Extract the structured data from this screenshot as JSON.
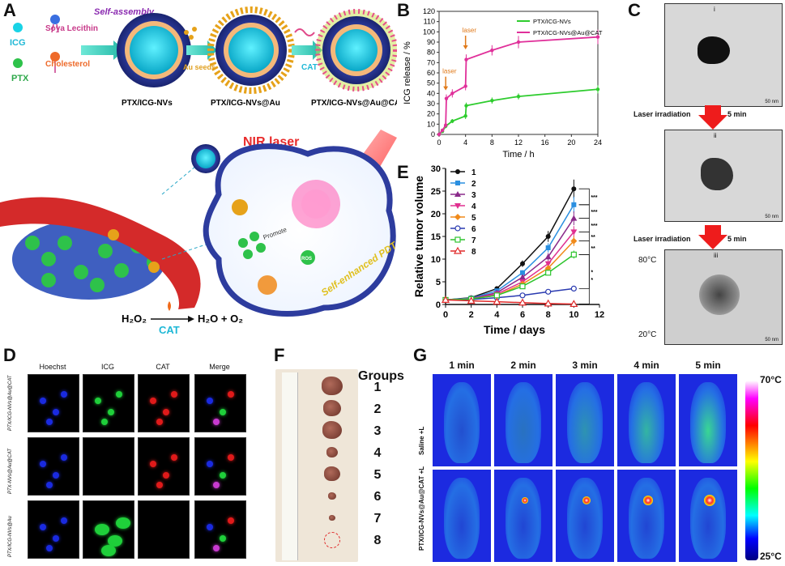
{
  "panels": {
    "a": "A",
    "b": "B",
    "c": "C",
    "d": "D",
    "e": "E",
    "f": "F",
    "g": "G"
  },
  "panel_a": {
    "legend": {
      "icg": "ICG",
      "soya": "Soya Lecithin",
      "ptx": "PTX",
      "cholesterol": "Cholesterol"
    },
    "self_assembly": "Self-assembly",
    "au_seeds": "Au seeds",
    "cat": "CAT",
    "np1": "PTX/ICG-NVs",
    "np2": "PTX/ICG-NVs@Au",
    "np3": "PTX/ICG-NVs@Au@CAT",
    "nir": "NIR laser",
    "pdt": "Self-enhanced PDT",
    "promote": "Promote",
    "ros": "ROS",
    "equation": {
      "h2o2": "H₂O₂",
      "cat": "CAT",
      "products": "H₂O + O₂"
    },
    "colors": {
      "icg": "#19d3e6",
      "ptx": "#2ec24a",
      "vessel": "#d42a2a",
      "gold": "#e6a21a",
      "nir": "#ff2a2a"
    }
  },
  "panel_c": {
    "i": "i",
    "ii": "ii",
    "iii": "iii",
    "step1": "Laser irradiation",
    "step1_time": "5 min",
    "step2": "Laser irradiation",
    "step2_time": "5 min",
    "temp_hi": "80°C",
    "temp_lo": "20°C",
    "scale": "50 nm"
  },
  "panel_d": {
    "headers": [
      "Hoechst",
      "ICG",
      "CAT",
      "Merge"
    ],
    "rows": [
      "PTX/ICG-NVs@Au@CAT",
      "PTX-NVs@Au@CAT",
      "PTX/ICG-NVs@Au"
    ]
  },
  "panel_f": {
    "title": "Groups",
    "groups": [
      "1",
      "2",
      "3",
      "4",
      "5",
      "6",
      "7",
      "8"
    ]
  },
  "panel_g": {
    "times": [
      "1 min",
      "2 min",
      "3 min",
      "4 min",
      "5 min"
    ],
    "rows": [
      "Saline +L",
      "PTX/ICG-NVs@Au@CAT +L"
    ],
    "scale_max": "70°C",
    "scale_min": "25°C"
  },
  "chart_data": [
    {
      "id": "B",
      "type": "line",
      "xlabel": "Time / h",
      "ylabel": "ICG release / %",
      "xlim": [
        0,
        24
      ],
      "ylim": [
        0,
        120
      ],
      "xticks": [
        0,
        4,
        8,
        12,
        16,
        20,
        24
      ],
      "yticks": [
        0,
        10,
        20,
        30,
        40,
        50,
        60,
        70,
        80,
        90,
        100,
        110,
        120
      ],
      "annotations": [
        "laser",
        "laser"
      ],
      "series": [
        {
          "name": "PTX/ICG-NVs",
          "color": "#2ecc2e",
          "x": [
            0,
            0.5,
            1,
            2,
            4,
            4.1,
            8,
            12,
            24
          ],
          "y": [
            0,
            3,
            8,
            13,
            18,
            28,
            33,
            37,
            44
          ],
          "err": [
            0,
            1,
            2,
            2,
            3,
            3,
            3,
            3,
            4
          ]
        },
        {
          "name": "PTX/ICG-NVs@Au@CAT",
          "color": "#e0309a",
          "x": [
            0,
            0.5,
            1,
            1.1,
            2,
            4,
            4.1,
            8,
            12,
            24
          ],
          "y": [
            0,
            4,
            9,
            35,
            40,
            47,
            73,
            82,
            90,
            95
          ],
          "err": [
            0,
            1,
            2,
            4,
            4,
            4,
            5,
            5,
            6,
            7
          ]
        }
      ]
    },
    {
      "id": "E",
      "type": "line",
      "xlabel": "Time / days",
      "ylabel": "Relative tumor volume",
      "xlim": [
        0,
        12
      ],
      "ylim": [
        0,
        30
      ],
      "xticks": [
        0,
        2,
        4,
        6,
        8,
        10,
        12
      ],
      "yticks": [
        0,
        5,
        10,
        15,
        20,
        25,
        30
      ],
      "significance": [
        "***",
        "***",
        "***",
        "**",
        "**",
        "*",
        "*"
      ],
      "series": [
        {
          "name": "1",
          "color": "#111111",
          "marker": "circle",
          "x": [
            0,
            2,
            4,
            6,
            8,
            10
          ],
          "y": [
            1,
            1.5,
            3.5,
            9,
            15,
            25.5
          ]
        },
        {
          "name": "2",
          "color": "#2a8fe0",
          "marker": "square",
          "x": [
            0,
            2,
            4,
            6,
            8,
            10
          ],
          "y": [
            1,
            1.4,
            3,
            7,
            12.5,
            22
          ]
        },
        {
          "name": "3",
          "color": "#8a2a8a",
          "marker": "triangle",
          "x": [
            0,
            2,
            4,
            6,
            8,
            10
          ],
          "y": [
            1,
            1.3,
            2.6,
            6,
            10.5,
            19
          ]
        },
        {
          "name": "4",
          "color": "#e03090",
          "marker": "triangle-down",
          "x": [
            0,
            2,
            4,
            6,
            8,
            10
          ],
          "y": [
            1,
            1.2,
            2.3,
            5,
            9,
            16
          ]
        },
        {
          "name": "5",
          "color": "#f08a1a",
          "marker": "diamond",
          "x": [
            0,
            2,
            4,
            6,
            8,
            10
          ],
          "y": [
            1,
            1.2,
            2,
            4.5,
            8,
            14
          ]
        },
        {
          "name": "6",
          "color": "#2a3ab0",
          "marker": "circle-open",
          "x": [
            0,
            2,
            4,
            6,
            8,
            10
          ],
          "y": [
            1,
            1.1,
            1.5,
            2,
            2.8,
            3.5
          ]
        },
        {
          "name": "7",
          "color": "#2ec42e",
          "marker": "square-open",
          "x": [
            0,
            2,
            4,
            6,
            8,
            10
          ],
          "y": [
            1,
            1.2,
            2,
            4,
            7,
            11
          ]
        },
        {
          "name": "8",
          "color": "#e02a2a",
          "marker": "triangle-open",
          "x": [
            0,
            2,
            4,
            6,
            8,
            10
          ],
          "y": [
            1,
            0.8,
            0.6,
            0.4,
            0.2,
            0.1
          ]
        }
      ]
    }
  ]
}
